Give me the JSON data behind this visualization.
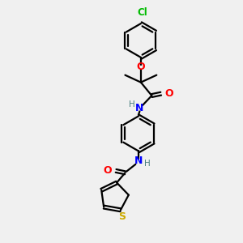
{
  "background_color": "#f0f0f0",
  "bond_color": "#000000",
  "atom_colors": {
    "O": "#ff0000",
    "N": "#0000ff",
    "S": "#ccaa00",
    "Cl": "#00bb00",
    "C": "#000000",
    "H": "#4a8080"
  },
  "figsize": [
    3.0,
    3.0
  ],
  "dpi": 100,
  "xlim": [
    0,
    10
  ],
  "ylim": [
    0,
    10
  ]
}
